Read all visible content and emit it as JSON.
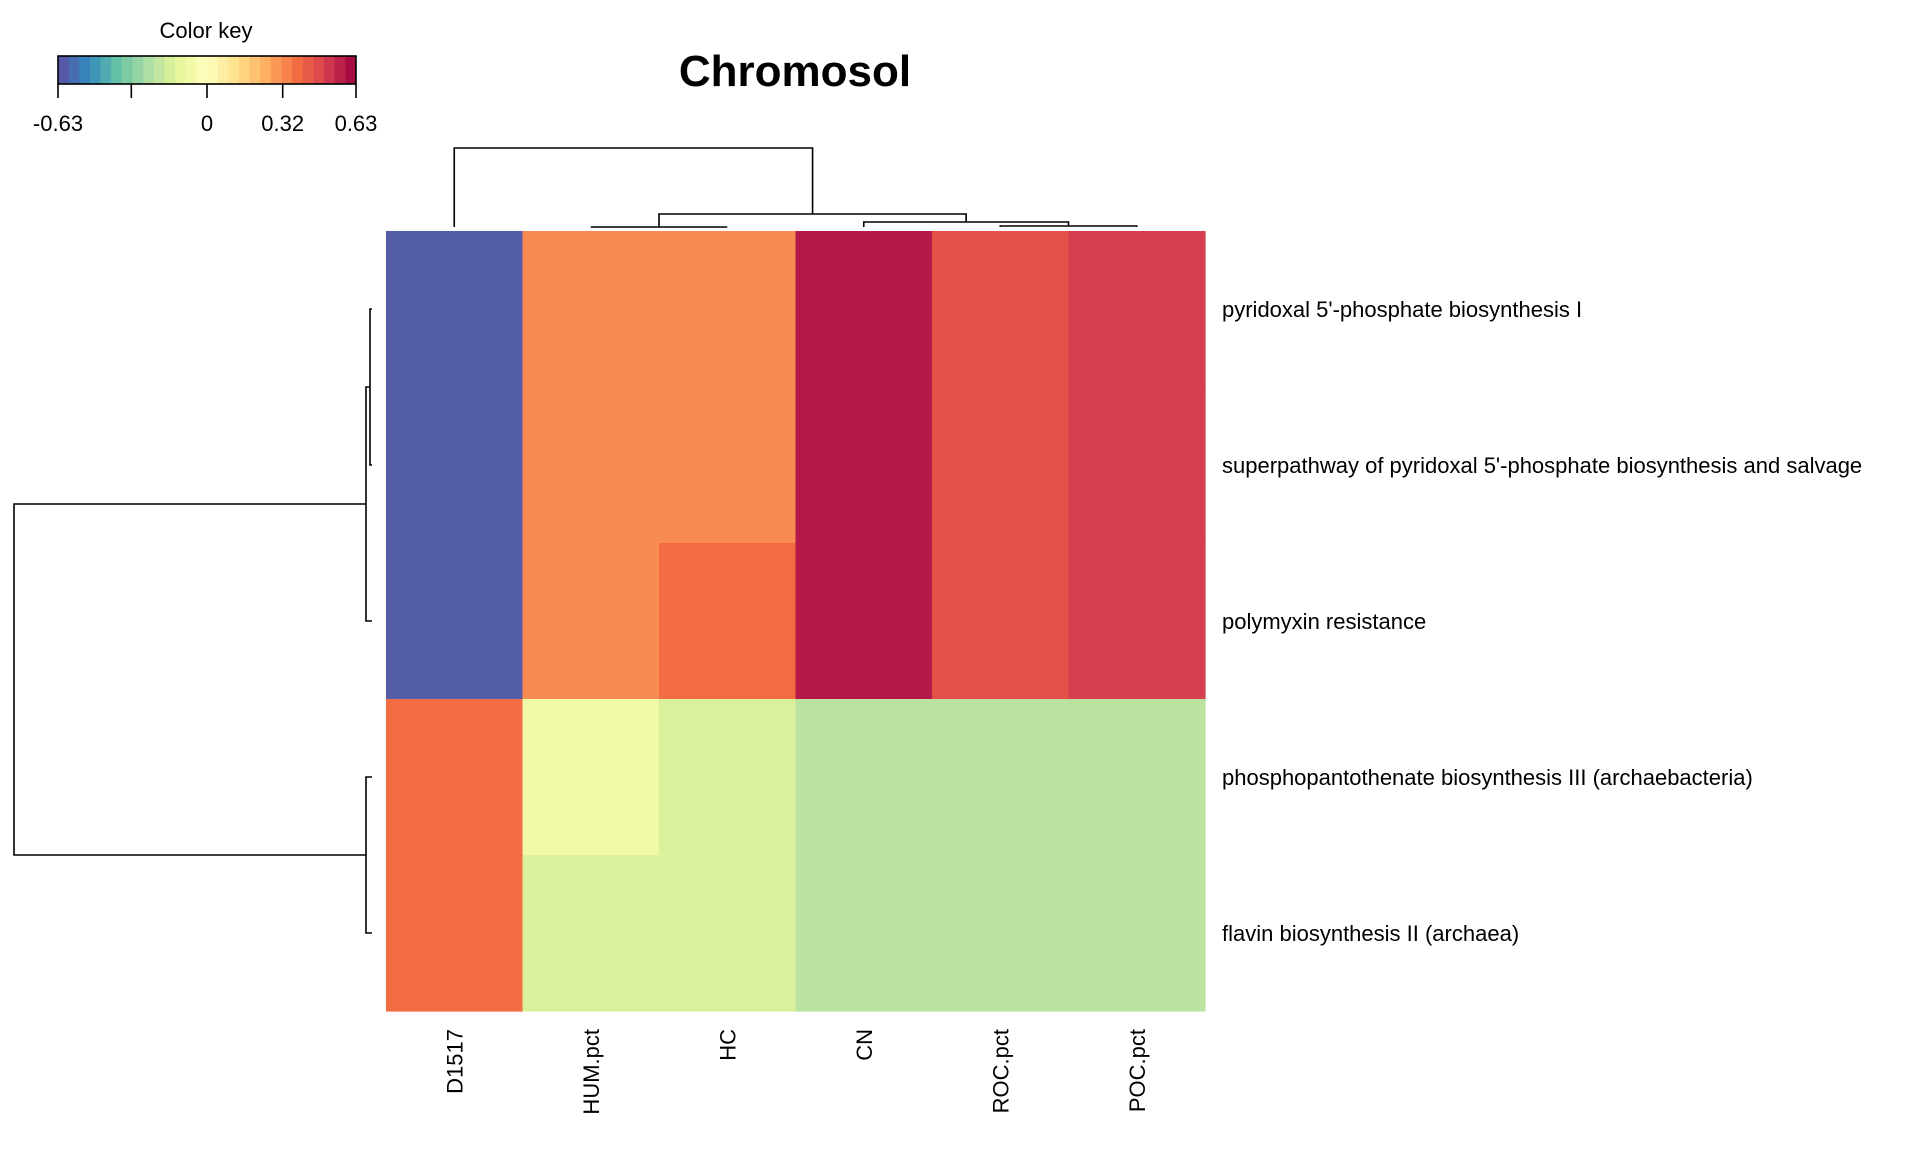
{
  "chart_data": {
    "type": "heatmap",
    "title": "Chromosol",
    "columns": [
      "D1517",
      "HUM.pct",
      "HC",
      "CN",
      "ROC.pct",
      "POC.pct"
    ],
    "rows": [
      "pyridoxal 5'-phosphate biosynthesis I",
      "superpathway of pyridoxal 5'-phosphate biosynthesis and salvage",
      "polymyxin resistance",
      "phosphopantothenate biosynthesis III (archaebacteria)",
      "flavin biosynthesis II (archaea)"
    ],
    "values": [
      [
        -0.6,
        0.32,
        0.32,
        0.58,
        0.45,
        0.5
      ],
      [
        -0.6,
        0.32,
        0.32,
        0.58,
        0.45,
        0.5
      ],
      [
        -0.6,
        0.32,
        0.38,
        0.58,
        0.45,
        0.5
      ],
      [
        0.38,
        -0.08,
        -0.15,
        -0.22,
        -0.22,
        -0.22
      ],
      [
        0.38,
        -0.15,
        -0.15,
        -0.22,
        -0.22,
        -0.22
      ]
    ],
    "color_key": {
      "title": "Color key",
      "range": [
        -0.63,
        0.63
      ],
      "tick_labels": [
        "-0.63",
        "0",
        "0.32",
        "0.63"
      ],
      "tick_values": [
        -0.63,
        0,
        0.32,
        0.63
      ],
      "extra_tick_values": [
        -0.32
      ],
      "colors": [
        "#5e4fa2",
        "#3288bd",
        "#66c2a5",
        "#abdda4",
        "#e6f598",
        "#ffffbf",
        "#fee08b",
        "#fdae61",
        "#f46d43",
        "#d53e4f",
        "#9e0142"
      ]
    },
    "column_dendrogram": "((D1517),((HUM.pct,HC),(CN,(ROC.pct,POC.pct))))",
    "row_dendrogram": "(((row1,row2),row3),(row4,row5))"
  }
}
